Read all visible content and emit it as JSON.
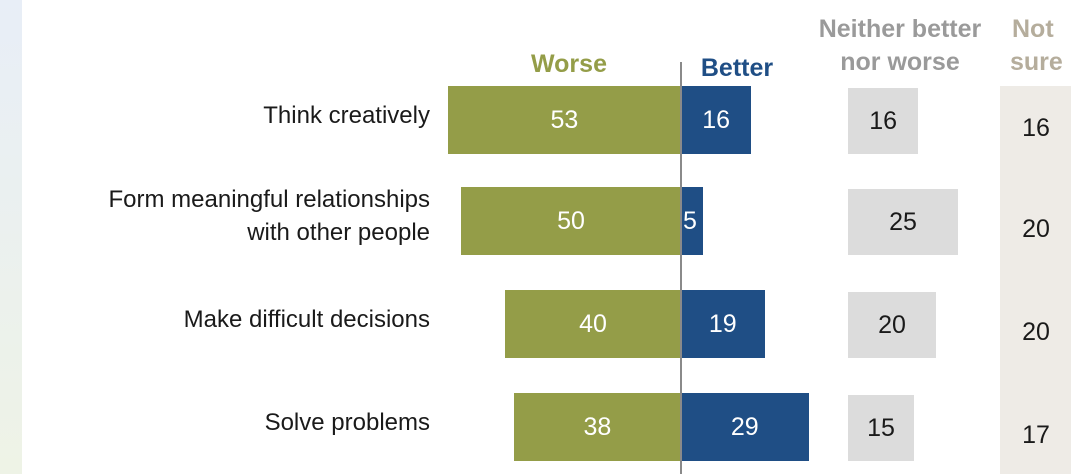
{
  "chart_data": {
    "type": "bar",
    "categories": [
      [
        "Think creatively"
      ],
      [
        "Form meaningful relationships",
        "with other people"
      ],
      [
        "Make difficult decisions"
      ],
      [
        "Solve problems"
      ]
    ],
    "series": [
      {
        "name": "Worse",
        "values": [
          53,
          50,
          40,
          38
        ]
      },
      {
        "name": "Better",
        "values": [
          16,
          5,
          19,
          29
        ]
      },
      {
        "name": "Neither better nor worse",
        "values": [
          16,
          25,
          20,
          15
        ]
      },
      {
        "name": "Not sure",
        "values": [
          16,
          20,
          20,
          17
        ]
      }
    ],
    "headers": {
      "worse": "Worse",
      "better": "Better",
      "neither_1": "Neither better",
      "neither_2": "nor worse",
      "notsure_1": "Not",
      "notsure_2": "sure"
    },
    "colors": {
      "worse": "#949d48",
      "better": "#1f4e85",
      "neither": "#dcdcdc",
      "notsure": "#eeebe6",
      "header_grey": "#9a9a9a",
      "header_tan": "#b5ad9c"
    }
  }
}
